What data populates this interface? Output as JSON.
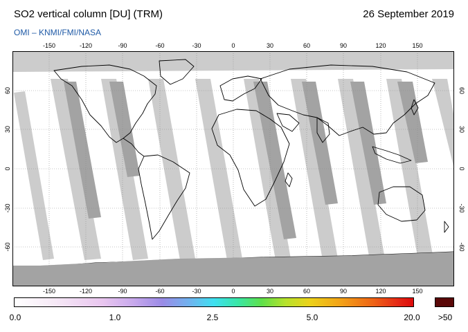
{
  "header": {
    "title": "SO2 vertical column [DU] (TRM)",
    "date": "26 September 2019",
    "credit": "OMI  –  KNMI/FMI/NASA"
  },
  "map": {
    "projection": "equirectangular",
    "lon_range": [
      -180,
      180
    ],
    "lat_range": [
      -90,
      90
    ],
    "lon_ticks": [
      "-150",
      "-120",
      "-90",
      "-60",
      "-30",
      "0",
      "30",
      "60",
      "90",
      "120",
      "150"
    ],
    "lat_ticks": [
      "60",
      "30",
      "0",
      "-30",
      "-60"
    ],
    "colors": {
      "no_data": "#cccccc",
      "dark_swath": "#a3a3a3",
      "ocean": "#ffffff",
      "coast": "#000000",
      "grid": "#8c8c8c"
    }
  },
  "colorbar": {
    "labels": [
      "0.0",
      "1.0",
      "2.5",
      "5.0",
      "20.0",
      ">50"
    ],
    "colors": [
      "#ffffff",
      "#e9c6ef",
      "#9b8be6",
      "#3fe0f0",
      "#5fe04a",
      "#ecd21a",
      "#ee6316",
      "#dd0b0b"
    ],
    "overflow_color": "#5a0808"
  }
}
